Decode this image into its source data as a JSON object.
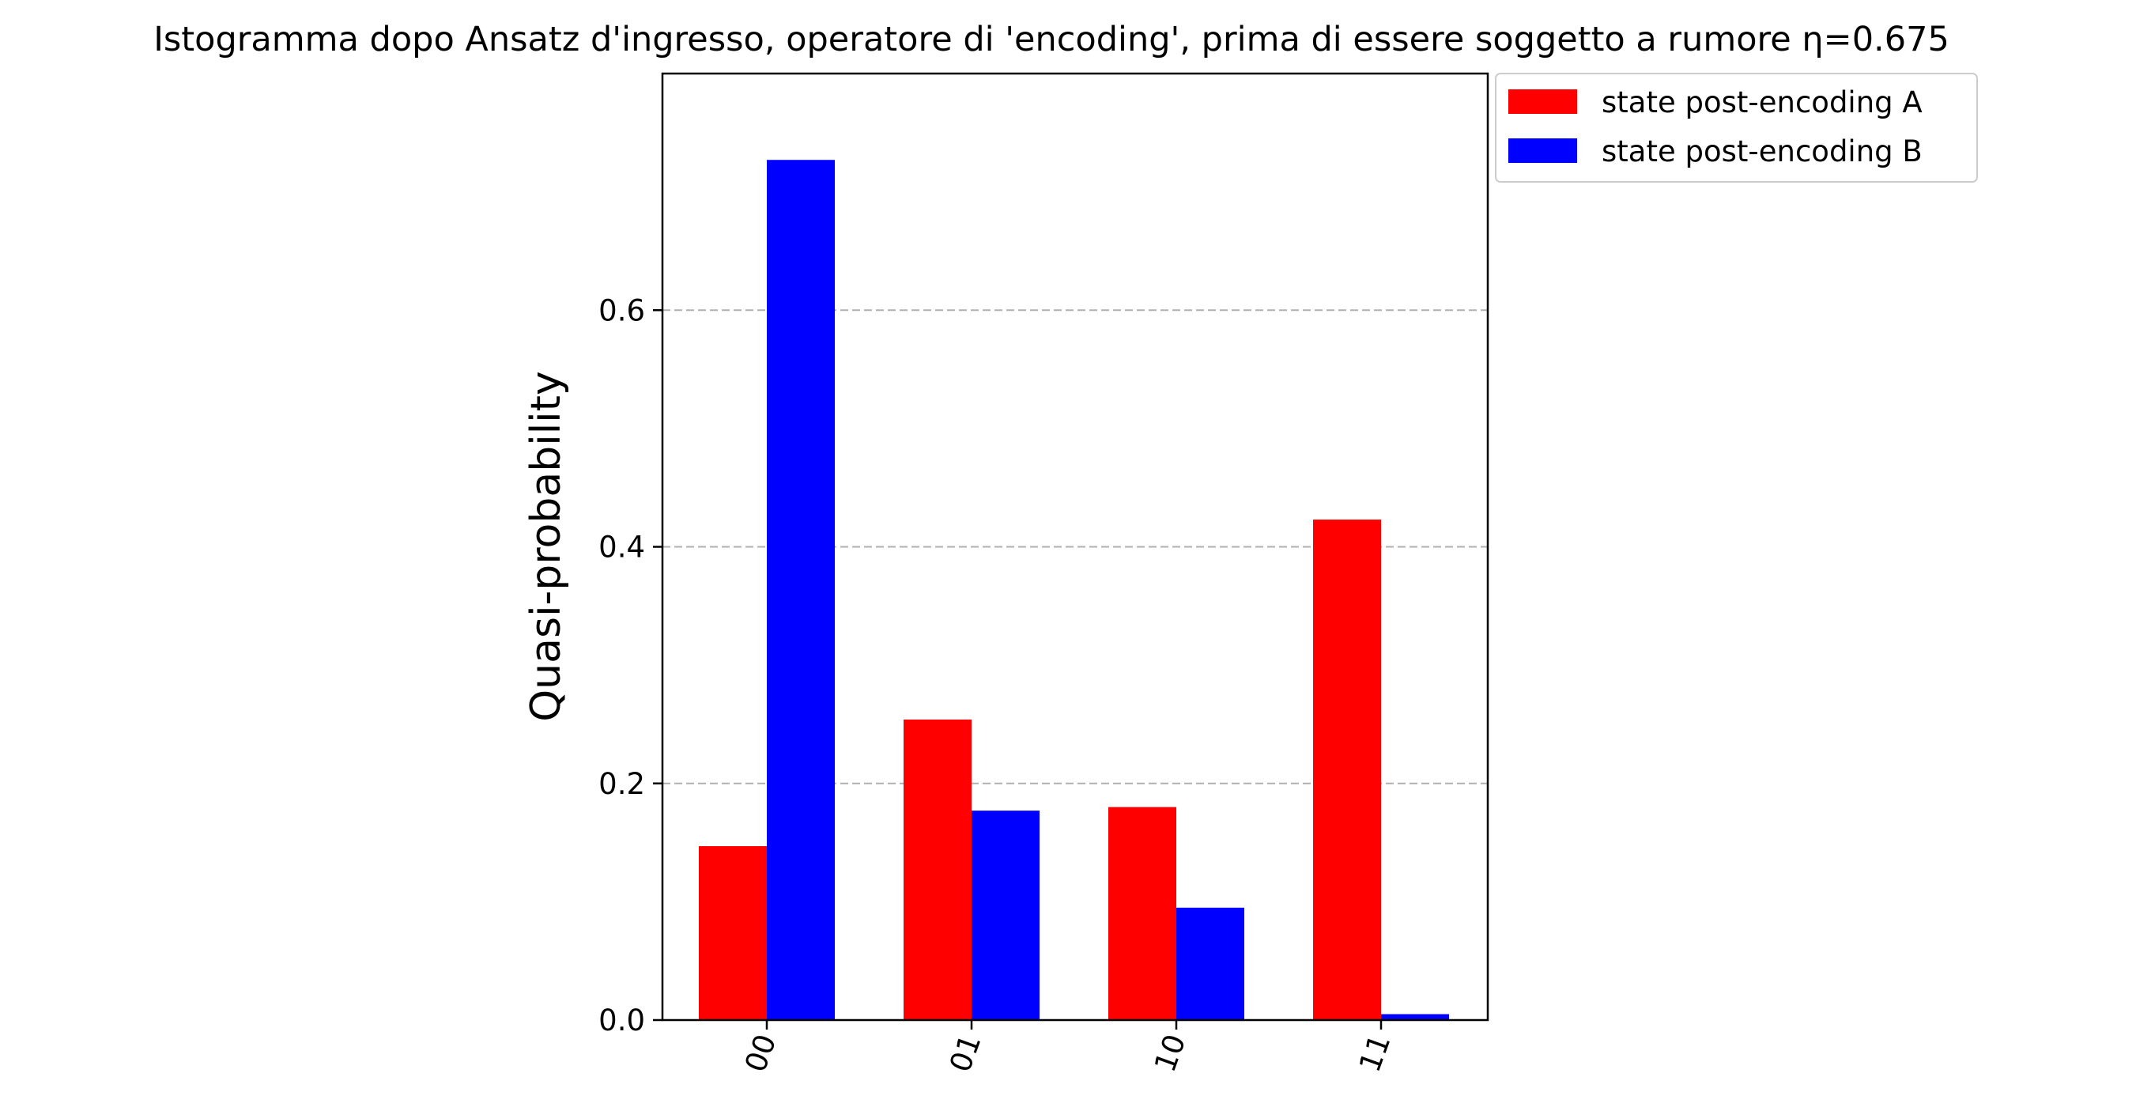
{
  "chart_data": {
    "type": "bar",
    "title": "Istogramma dopo Ansatz d'ingresso, operatore di 'encoding', prima di essere soggetto a rumore η=0.675",
    "xlabel": "",
    "ylabel": "Quasi-probability",
    "categories": [
      "00",
      "01",
      "10",
      "11"
    ],
    "series": [
      {
        "name": "state post-encoding A",
        "color": "#ff0000",
        "values": [
          0.147,
          0.254,
          0.18,
          0.423
        ]
      },
      {
        "name": "state post-encoding B",
        "color": "#0000ff",
        "values": [
          0.727,
          0.177,
          0.095,
          0.005
        ]
      }
    ],
    "ylim": [
      0,
      0.8
    ],
    "yticks": [
      0.0,
      0.2,
      0.4,
      0.6
    ],
    "ytick_labels": [
      "0.0",
      "0.2",
      "0.4",
      "0.6"
    ],
    "grid": "y-dashed",
    "legend_position": "outside-top-right"
  }
}
